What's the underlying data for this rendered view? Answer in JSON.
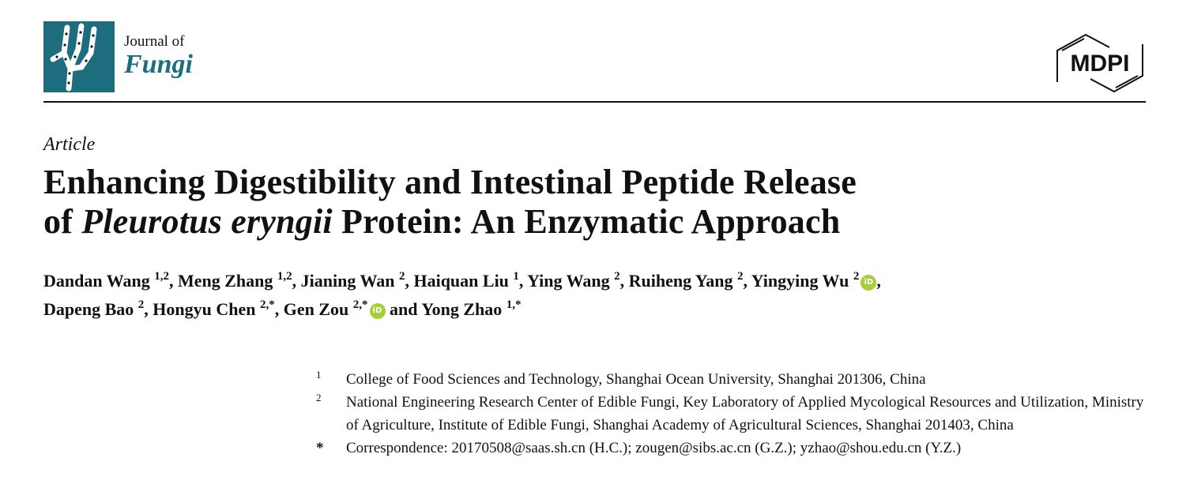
{
  "header": {
    "journal_line1": "Journal of",
    "journal_line2": "Fungi",
    "publisher_logo_text": "MDPI",
    "brand_color": "#1e6d7e"
  },
  "article_type": "Article",
  "title": {
    "line1": "Enhancing Digestibility and Intestinal Peptide Release",
    "line2_prefix": "of ",
    "line2_italic": "Pleurotus eryngii",
    "line2_suffix": " Protein: An Enzymatic Approach"
  },
  "authors": [
    {
      "name": "Dandan Wang",
      "sup": "1,2",
      "sep": ", "
    },
    {
      "name": "Meng Zhang",
      "sup": "1,2",
      "sep": ", "
    },
    {
      "name": "Jianing Wan",
      "sup": "2",
      "sep": ", "
    },
    {
      "name": "Haiquan Liu",
      "sup": "1",
      "sep": ", "
    },
    {
      "name": "Ying Wang",
      "sup": "2",
      "sep": ", "
    },
    {
      "name": "Ruiheng Yang",
      "sup": "2",
      "sep": ", "
    },
    {
      "name": "Yingying Wu",
      "sup": "2",
      "orcid": true,
      "sep": ","
    },
    {
      "name": "Dapeng Bao",
      "sup": "2",
      "sep": ", "
    },
    {
      "name": "Hongyu Chen",
      "sup": "2,*",
      "sep": ", "
    },
    {
      "name": "Gen Zou",
      "sup": "2,*",
      "orcid": true,
      "sep": " and "
    },
    {
      "name": "Yong Zhao",
      "sup": "1,*",
      "sep": ""
    }
  ],
  "orcid_icon": {
    "label": "iD",
    "color": "#a6ce39"
  },
  "affiliations": [
    {
      "mark": "1",
      "text": "College of Food Sciences and Technology, Shanghai Ocean University, Shanghai 201306, China"
    },
    {
      "mark": "2",
      "text": "National Engineering Research Center of Edible Fungi, Key Laboratory of Applied Mycological Resources and Utilization, Ministry of Agriculture, Institute of Edible Fungi, Shanghai Academy of Agricultural Sciences, Shanghai 201403, China"
    },
    {
      "mark": "*",
      "text": "Correspondence: 20170508@saas.sh.cn (H.C.); zougen@sibs.ac.cn (G.Z.); yzhao@shou.edu.cn (Y.Z.)"
    }
  ]
}
